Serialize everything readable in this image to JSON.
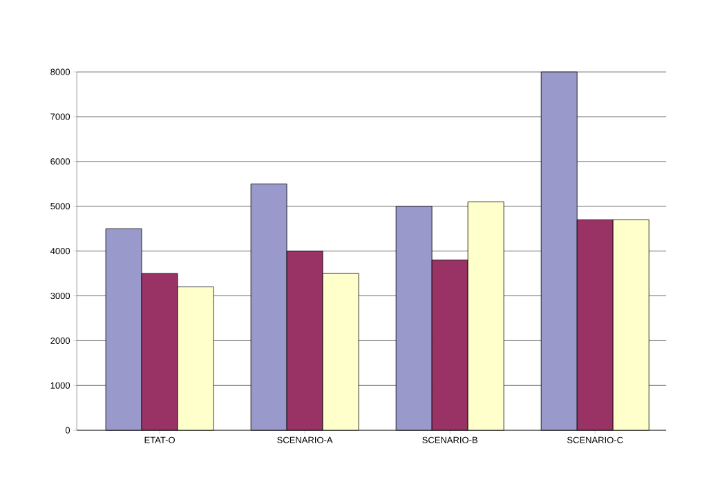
{
  "chart_data": {
    "type": "bar",
    "categories": [
      "ETAT-O",
      "SCENARIO-A",
      "SCENARIO-B",
      "SCENARIO-C"
    ],
    "series": [
      {
        "color": "#9999cc",
        "values": [
          4500,
          5500,
          5000,
          8000
        ]
      },
      {
        "color": "#993366",
        "values": [
          3500,
          4000,
          3800,
          4700
        ]
      },
      {
        "color": "#ffffcc",
        "values": [
          3200,
          3500,
          5100,
          4700
        ]
      }
    ],
    "ylim": [
      0,
      8000
    ],
    "yticks": [
      0,
      1000,
      2000,
      3000,
      4000,
      5000,
      6000,
      7000,
      8000
    ],
    "grid": "y"
  }
}
